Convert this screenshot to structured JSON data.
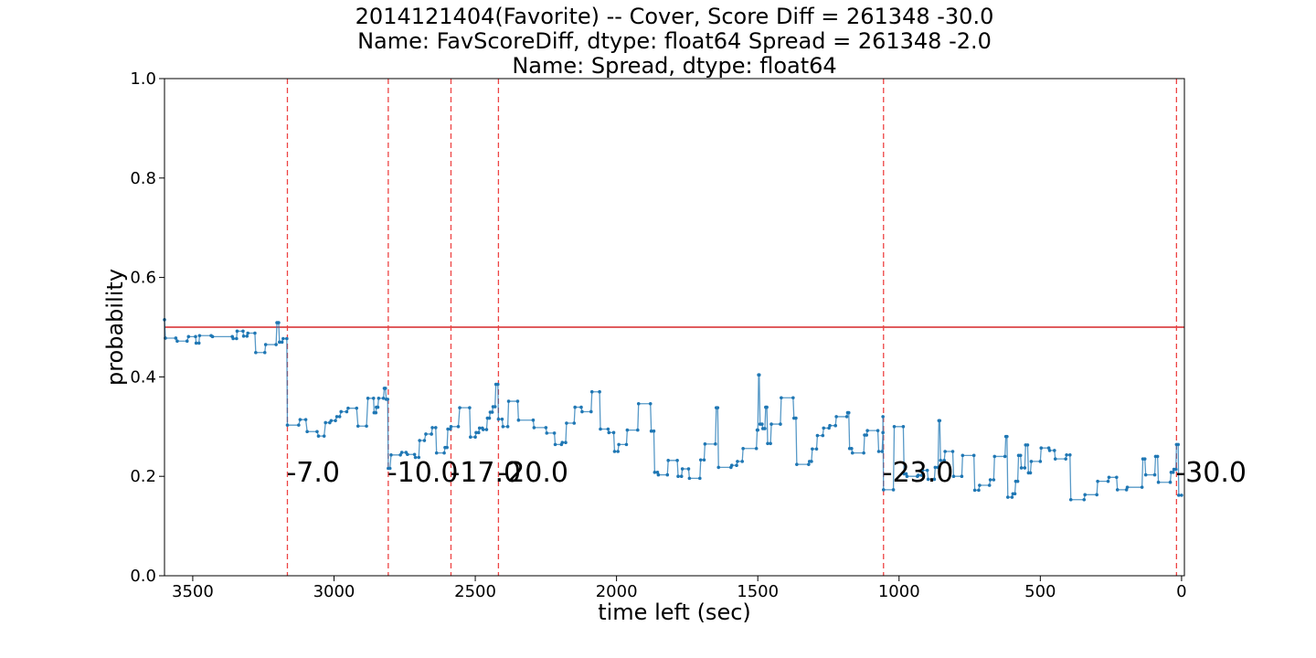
{
  "chart_data": {
    "type": "line",
    "title_lines": [
      "2014121404(Favorite) -- Cover, Score Diff = 261348   -30.0",
      "Name: FavScoreDiff, dtype: float64 Spread = 261348   -2.0",
      "Name: Spread, dtype: float64"
    ],
    "xlabel": "time left (sec)",
    "ylabel": "probability",
    "xlim": [
      3600,
      -10
    ],
    "ylim": [
      0.0,
      1.0
    ],
    "x_ticks": [
      3500,
      3000,
      2500,
      2000,
      1500,
      1000,
      500,
      0
    ],
    "y_ticks": [
      "0.0",
      "0.2",
      "0.4",
      "0.6",
      "0.8",
      "1.0"
    ],
    "y_tick_values": [
      0.0,
      0.2,
      0.4,
      0.6,
      0.8,
      1.0
    ],
    "reference_line": {
      "y": 0.5,
      "color": "#d62728"
    },
    "score_events": [
      {
        "x": 3165,
        "label": "-7.0"
      },
      {
        "x": 2808,
        "label": "-10.0"
      },
      {
        "x": 2586,
        "label": "-17.0"
      },
      {
        "x": 2418,
        "label": "-20.0"
      },
      {
        "x": 1055,
        "label": "-23.0"
      },
      {
        "x": 18,
        "label": "-30.0"
      }
    ],
    "score_label_y": 0.21,
    "series": [
      {
        "color": "#1f77b4",
        "points": [
          [
            3600,
            0.515
          ],
          [
            3597,
            0.478
          ],
          [
            3560,
            0.478
          ],
          [
            3555,
            0.472
          ],
          [
            3520,
            0.472
          ],
          [
            3515,
            0.481
          ],
          [
            3490,
            0.481
          ],
          [
            3488,
            0.468
          ],
          [
            3478,
            0.468
          ],
          [
            3476,
            0.483
          ],
          [
            3435,
            0.483
          ],
          [
            3430,
            0.481
          ],
          [
            3360,
            0.481
          ],
          [
            3357,
            0.477
          ],
          [
            3345,
            0.477
          ],
          [
            3343,
            0.492
          ],
          [
            3322,
            0.492
          ],
          [
            3320,
            0.482
          ],
          [
            3308,
            0.482
          ],
          [
            3305,
            0.488
          ],
          [
            3280,
            0.488
          ],
          [
            3277,
            0.449
          ],
          [
            3245,
            0.449
          ],
          [
            3242,
            0.465
          ],
          [
            3205,
            0.465
          ],
          [
            3202,
            0.509
          ],
          [
            3196,
            0.509
          ],
          [
            3193,
            0.47
          ],
          [
            3184,
            0.47
          ],
          [
            3180,
            0.477
          ],
          [
            3167,
            0.477
          ],
          [
            3165,
            0.303
          ],
          [
            3125,
            0.303
          ],
          [
            3120,
            0.314
          ],
          [
            3100,
            0.314
          ],
          [
            3095,
            0.29
          ],
          [
            3060,
            0.29
          ],
          [
            3055,
            0.281
          ],
          [
            3035,
            0.281
          ],
          [
            3030,
            0.308
          ],
          [
            3015,
            0.308
          ],
          [
            3010,
            0.312
          ],
          [
            2995,
            0.312
          ],
          [
            2990,
            0.32
          ],
          [
            2980,
            0.32
          ],
          [
            2975,
            0.33
          ],
          [
            2955,
            0.33
          ],
          [
            2950,
            0.337
          ],
          [
            2920,
            0.337
          ],
          [
            2915,
            0.301
          ],
          [
            2885,
            0.301
          ],
          [
            2880,
            0.357
          ],
          [
            2860,
            0.357
          ],
          [
            2858,
            0.328
          ],
          [
            2852,
            0.328
          ],
          [
            2850,
            0.339
          ],
          [
            2845,
            0.339
          ],
          [
            2842,
            0.357
          ],
          [
            2825,
            0.357
          ],
          [
            2822,
            0.377
          ],
          [
            2818,
            0.377
          ],
          [
            2815,
            0.355
          ],
          [
            2810,
            0.355
          ],
          [
            2808,
            0.216
          ],
          [
            2802,
            0.216
          ],
          [
            2798,
            0.243
          ],
          [
            2765,
            0.243
          ],
          [
            2760,
            0.248
          ],
          [
            2745,
            0.248
          ],
          [
            2740,
            0.244
          ],
          [
            2715,
            0.244
          ],
          [
            2712,
            0.238
          ],
          [
            2700,
            0.238
          ],
          [
            2697,
            0.272
          ],
          [
            2680,
            0.272
          ],
          [
            2675,
            0.285
          ],
          [
            2655,
            0.285
          ],
          [
            2652,
            0.298
          ],
          [
            2640,
            0.298
          ],
          [
            2637,
            0.247
          ],
          [
            2610,
            0.247
          ],
          [
            2607,
            0.258
          ],
          [
            2600,
            0.258
          ],
          [
            2597,
            0.295
          ],
          [
            2588,
            0.295
          ],
          [
            2586,
            0.3
          ],
          [
            2560,
            0.3
          ],
          [
            2555,
            0.338
          ],
          [
            2520,
            0.338
          ],
          [
            2517,
            0.279
          ],
          [
            2500,
            0.279
          ],
          [
            2497,
            0.288
          ],
          [
            2488,
            0.288
          ],
          [
            2485,
            0.297
          ],
          [
            2475,
            0.297
          ],
          [
            2472,
            0.294
          ],
          [
            2460,
            0.294
          ],
          [
            2457,
            0.317
          ],
          [
            2450,
            0.317
          ],
          [
            2447,
            0.329
          ],
          [
            2440,
            0.329
          ],
          [
            2437,
            0.34
          ],
          [
            2430,
            0.34
          ],
          [
            2427,
            0.385
          ],
          [
            2420,
            0.385
          ],
          [
            2418,
            0.315
          ],
          [
            2405,
            0.315
          ],
          [
            2402,
            0.3
          ],
          [
            2385,
            0.3
          ],
          [
            2382,
            0.351
          ],
          [
            2350,
            0.351
          ],
          [
            2347,
            0.313
          ],
          [
            2295,
            0.313
          ],
          [
            2292,
            0.298
          ],
          [
            2250,
            0.298
          ],
          [
            2247,
            0.287
          ],
          [
            2220,
            0.287
          ],
          [
            2217,
            0.264
          ],
          [
            2195,
            0.264
          ],
          [
            2192,
            0.268
          ],
          [
            2180,
            0.268
          ],
          [
            2177,
            0.307
          ],
          [
            2150,
            0.307
          ],
          [
            2147,
            0.339
          ],
          [
            2125,
            0.339
          ],
          [
            2122,
            0.33
          ],
          [
            2090,
            0.33
          ],
          [
            2087,
            0.37
          ],
          [
            2060,
            0.37
          ],
          [
            2057,
            0.295
          ],
          [
            2030,
            0.295
          ],
          [
            2027,
            0.288
          ],
          [
            2010,
            0.288
          ],
          [
            2007,
            0.25
          ],
          [
            1995,
            0.25
          ],
          [
            1992,
            0.264
          ],
          [
            1965,
            0.264
          ],
          [
            1962,
            0.293
          ],
          [
            1925,
            0.293
          ],
          [
            1922,
            0.346
          ],
          [
            1880,
            0.346
          ],
          [
            1877,
            0.291
          ],
          [
            1868,
            0.291
          ],
          [
            1865,
            0.208
          ],
          [
            1855,
            0.208
          ],
          [
            1852,
            0.203
          ],
          [
            1820,
            0.203
          ],
          [
            1817,
            0.232
          ],
          [
            1785,
            0.232
          ],
          [
            1782,
            0.2
          ],
          [
            1770,
            0.2
          ],
          [
            1767,
            0.215
          ],
          [
            1745,
            0.215
          ],
          [
            1742,
            0.196
          ],
          [
            1705,
            0.196
          ],
          [
            1702,
            0.233
          ],
          [
            1690,
            0.233
          ],
          [
            1687,
            0.265
          ],
          [
            1650,
            0.265
          ],
          [
            1647,
            0.338
          ],
          [
            1642,
            0.338
          ],
          [
            1639,
            0.218
          ],
          [
            1595,
            0.218
          ],
          [
            1592,
            0.222
          ],
          [
            1575,
            0.222
          ],
          [
            1572,
            0.23
          ],
          [
            1555,
            0.23
          ],
          [
            1552,
            0.256
          ],
          [
            1505,
            0.256
          ],
          [
            1502,
            0.293
          ],
          [
            1500,
            0.293
          ],
          [
            1497,
            0.404
          ],
          [
            1495,
            0.404
          ],
          [
            1492,
            0.305
          ],
          [
            1485,
            0.305
          ],
          [
            1482,
            0.296
          ],
          [
            1475,
            0.296
          ],
          [
            1472,
            0.339
          ],
          [
            1468,
            0.339
          ],
          [
            1465,
            0.266
          ],
          [
            1455,
            0.266
          ],
          [
            1452,
            0.305
          ],
          [
            1420,
            0.305
          ],
          [
            1417,
            0.358
          ],
          [
            1375,
            0.358
          ],
          [
            1372,
            0.317
          ],
          [
            1365,
            0.317
          ],
          [
            1362,
            0.224
          ],
          [
            1320,
            0.224
          ],
          [
            1317,
            0.23
          ],
          [
            1310,
            0.23
          ],
          [
            1307,
            0.255
          ],
          [
            1292,
            0.255
          ],
          [
            1289,
            0.282
          ],
          [
            1270,
            0.282
          ],
          [
            1267,
            0.297
          ],
          [
            1248,
            0.297
          ],
          [
            1245,
            0.302
          ],
          [
            1225,
            0.302
          ],
          [
            1222,
            0.32
          ],
          [
            1185,
            0.32
          ],
          [
            1182,
            0.328
          ],
          [
            1178,
            0.328
          ],
          [
            1175,
            0.256
          ],
          [
            1168,
            0.256
          ],
          [
            1165,
            0.247
          ],
          [
            1125,
            0.247
          ],
          [
            1122,
            0.283
          ],
          [
            1115,
            0.283
          ],
          [
            1112,
            0.292
          ],
          [
            1075,
            0.292
          ],
          [
            1072,
            0.25
          ],
          [
            1060,
            0.25
          ],
          [
            1057,
            0.288
          ],
          [
            1057,
            0.32
          ],
          [
            1055,
            0.173
          ],
          [
            1020,
            0.173
          ],
          [
            1017,
            0.3
          ],
          [
            985,
            0.3
          ],
          [
            982,
            0.205
          ],
          [
            975,
            0.205
          ],
          [
            972,
            0.2
          ],
          [
            935,
            0.2
          ],
          [
            932,
            0.202
          ],
          [
            920,
            0.202
          ],
          [
            917,
            0.212
          ],
          [
            900,
            0.212
          ],
          [
            897,
            0.194
          ],
          [
            875,
            0.194
          ],
          [
            872,
            0.218
          ],
          [
            862,
            0.218
          ],
          [
            859,
            0.312
          ],
          [
            856,
            0.312
          ],
          [
            853,
            0.232
          ],
          [
            840,
            0.232
          ],
          [
            837,
            0.25
          ],
          [
            810,
            0.25
          ],
          [
            807,
            0.2
          ],
          [
            778,
            0.2
          ],
          [
            775,
            0.242
          ],
          [
            735,
            0.242
          ],
          [
            732,
            0.172
          ],
          [
            718,
            0.172
          ],
          [
            715,
            0.182
          ],
          [
            680,
            0.182
          ],
          [
            677,
            0.193
          ],
          [
            665,
            0.193
          ],
          [
            662,
            0.24
          ],
          [
            625,
            0.24
          ],
          [
            622,
            0.28
          ],
          [
            618,
            0.28
          ],
          [
            615,
            0.158
          ],
          [
            600,
            0.158
          ],
          [
            597,
            0.165
          ],
          [
            590,
            0.165
          ],
          [
            587,
            0.19
          ],
          [
            580,
            0.19
          ],
          [
            577,
            0.242
          ],
          [
            570,
            0.242
          ],
          [
            567,
            0.217
          ],
          [
            555,
            0.217
          ],
          [
            552,
            0.263
          ],
          [
            545,
            0.263
          ],
          [
            542,
            0.207
          ],
          [
            535,
            0.207
          ],
          [
            532,
            0.23
          ],
          [
            500,
            0.23
          ],
          [
            497,
            0.257
          ],
          [
            470,
            0.257
          ],
          [
            467,
            0.252
          ],
          [
            450,
            0.252
          ],
          [
            447,
            0.235
          ],
          [
            410,
            0.235
          ],
          [
            407,
            0.243
          ],
          [
            395,
            0.243
          ],
          [
            392,
            0.153
          ],
          [
            345,
            0.153
          ],
          [
            342,
            0.163
          ],
          [
            300,
            0.163
          ],
          [
            297,
            0.19
          ],
          [
            260,
            0.19
          ],
          [
            257,
            0.198
          ],
          [
            230,
            0.198
          ],
          [
            227,
            0.173
          ],
          [
            195,
            0.173
          ],
          [
            192,
            0.178
          ],
          [
            140,
            0.178
          ],
          [
            137,
            0.235
          ],
          [
            130,
            0.235
          ],
          [
            127,
            0.203
          ],
          [
            95,
            0.203
          ],
          [
            92,
            0.24
          ],
          [
            85,
            0.24
          ],
          [
            82,
            0.188
          ],
          [
            40,
            0.188
          ],
          [
            37,
            0.208
          ],
          [
            30,
            0.208
          ],
          [
            27,
            0.214
          ],
          [
            20,
            0.214
          ],
          [
            18,
            0.264
          ],
          [
            12,
            0.264
          ],
          [
            10,
            0.162
          ],
          [
            0,
            0.162
          ]
        ]
      }
    ]
  }
}
